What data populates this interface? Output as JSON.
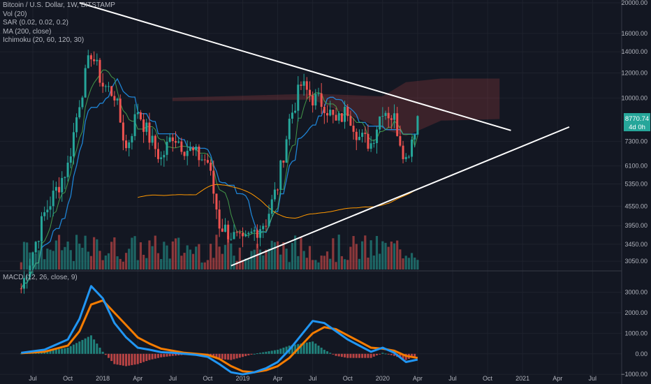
{
  "legend": {
    "title": "Bitcoin / U.S. Dollar, 1W, BITSTAMP",
    "indicators": [
      "Vol (20)",
      "SAR (0.02, 0.02, 0.2)",
      "MA (200, close)",
      "Ichimoku (20, 60, 120, 30)"
    ]
  },
  "macd_legend": "MACD (12, 26, close, 9)",
  "price_label": {
    "value": "8770.74",
    "countdown": "4d 0h"
  },
  "colors": {
    "background": "#131722",
    "bull": "#26a69a",
    "bear": "#ef5350",
    "trendline": "#ffffff",
    "kijun": "#2196f3",
    "tenkan": "#4caf50",
    "ma": "#ff9800",
    "macd": "#2196f3",
    "signal": "#f57c00"
  },
  "chart_data": [
    {
      "type": "line",
      "title": "Bitcoin / U.S. Dollar, 1W, BITSTAMP",
      "y_scale": "log",
      "ylim": [
        2900,
        20000
      ],
      "y_ticks": [
        "20000.00",
        "16000.00",
        "14000.00",
        "12000.00",
        "10000.00",
        "7300.00",
        "6100.00",
        "5350.00",
        "4550.00",
        "3950.00",
        "3450.00",
        "3050.00"
      ],
      "x_ticks": [
        "Jul",
        "Oct",
        "2018",
        "Apr",
        "Jul",
        "Oct",
        "2019",
        "Apr",
        "Jul",
        "Oct",
        "2020",
        "Apr",
        "Jul",
        "Oct",
        "2021",
        "Apr",
        "Jul"
      ],
      "last_price": 8770.74,
      "series": [
        {
          "name": "",
          "x": [
            "2017-06",
            "2017-08",
            "2017-10",
            "2017-11",
            "2017-12",
            "2018-01",
            "2018-02",
            "2018-03",
            "2018-04",
            "2018-05",
            "2018-06",
            "2018-07",
            "2018-08",
            "2018-09",
            "2018-10",
            "2018-11",
            "2018-12",
            "2019-01",
            "2019-02",
            "2019-03",
            "2019-04",
            "2019-05",
            "2019-06",
            "2019-07",
            "2019-08",
            "2019-09",
            "2019-10",
            "2019-11",
            "2019-12",
            "2020-01",
            "2020-02",
            "2020-03",
            "2020-04"
          ],
          "close": [
            2500,
            4300,
            6100,
            9800,
            14000,
            11000,
            10300,
            6900,
            9200,
            7500,
            6400,
            7700,
            7000,
            6600,
            6300,
            4000,
            3700,
            3450,
            3800,
            4100,
            5300,
            8500,
            11000,
            10000,
            9600,
            8300,
            9200,
            7500,
            7200,
            9350,
            8600,
            6400,
            8770
          ]
        }
      ],
      "trendlines": [
        {
          "from": [
            "2017-11",
            20000
          ],
          "to": [
            "2020-12",
            7900
          ]
        },
        {
          "from": [
            "2018-12",
            2950
          ],
          "to": [
            "2021-05",
            8100
          ]
        }
      ]
    },
    {
      "type": "line",
      "title": "MACD (12, 26, close, 9)",
      "ylim": [
        -1300,
        3700
      ],
      "y_ticks": [
        "3000.00",
        "2000.00",
        "1000.00",
        "0.00",
        "−1000.00"
      ],
      "x": [
        "2017-06",
        "2017-08",
        "2017-10",
        "2017-11",
        "2017-12",
        "2018-01",
        "2018-02",
        "2018-03",
        "2018-04",
        "2018-05",
        "2018-06",
        "2018-07",
        "2018-08",
        "2018-09",
        "2018-10",
        "2018-11",
        "2018-12",
        "2019-01",
        "2019-02",
        "2019-03",
        "2019-04",
        "2019-05",
        "2019-06",
        "2019-07",
        "2019-08",
        "2019-09",
        "2019-10",
        "2019-11",
        "2019-12",
        "2020-01",
        "2020-02",
        "2020-03",
        "2020-04"
      ],
      "series": [
        {
          "name": "",
          "values": [
            50,
            200,
            700,
            1700,
            3300,
            2700,
            1500,
            800,
            300,
            200,
            80,
            50,
            0,
            -50,
            -150,
            -500,
            -900,
            -1000,
            -900,
            -700,
            -400,
            200,
            900,
            1600,
            1500,
            1100,
            700,
            400,
            100,
            300,
            50,
            -400,
            -280
          ]
        },
        {
          "name": "",
          "values": [
            30,
            100,
            400,
            1100,
            2400,
            2600,
            2000,
            1400,
            800,
            500,
            250,
            150,
            50,
            0,
            -50,
            -250,
            -600,
            -850,
            -900,
            -800,
            -600,
            -200,
            400,
            1000,
            1300,
            1200,
            900,
            600,
            300,
            250,
            150,
            -100,
            -200
          ]
        }
      ]
    }
  ]
}
